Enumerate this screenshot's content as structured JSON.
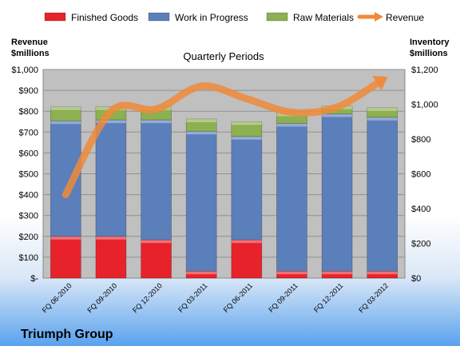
{
  "chart_data": {
    "type": "bar",
    "stacked": true,
    "title": "Quarterly Periods",
    "company": "Triumph Group",
    "categories": [
      "FQ 06-2010",
      "FQ 09-2010",
      "FQ 12-2010",
      "FQ 03-2011",
      "FQ 06-2011",
      "FQ 09-2011",
      "FQ 12-2011",
      "FQ 03-2012"
    ],
    "left_axis": {
      "label_line1": "Revenue",
      "label_line2": "$millions",
      "ylim": [
        0,
        1000
      ],
      "ticks": [
        "$-",
        "$100",
        "$200",
        "$300",
        "$400",
        "$500",
        "$600",
        "$700",
        "$800",
        "$900",
        "$1,000"
      ]
    },
    "right_axis": {
      "label_line1": "Inventory",
      "label_line2": "$millions",
      "ylim": [
        0,
        1200
      ],
      "ticks": [
        "$0",
        "$200",
        "$400",
        "$600",
        "$800",
        "$1,000",
        "$1,200"
      ]
    },
    "series": [
      {
        "name": "Finished Goods",
        "type": "bar",
        "axis": "right",
        "color": "#e8222b",
        "values": [
          240,
          240,
          220,
          40,
          220,
          40,
          40,
          40
        ]
      },
      {
        "name": "Work in Progress",
        "type": "bar",
        "axis": "right",
        "color": "#5b7fba",
        "values": [
          665,
          670,
          690,
          805,
          595,
          850,
          905,
          885
        ]
      },
      {
        "name": "Raw Materials",
        "type": "bar",
        "axis": "right",
        "color": "#8db050",
        "values": [
          80,
          75,
          75,
          70,
          85,
          60,
          45,
          55
        ]
      },
      {
        "name": "Revenue",
        "type": "line",
        "axis": "left",
        "color": "#f08a3a",
        "values": [
          400,
          800,
          810,
          920,
          860,
          795,
          820,
          950
        ]
      }
    ],
    "legend_position": "top",
    "grid": true
  }
}
